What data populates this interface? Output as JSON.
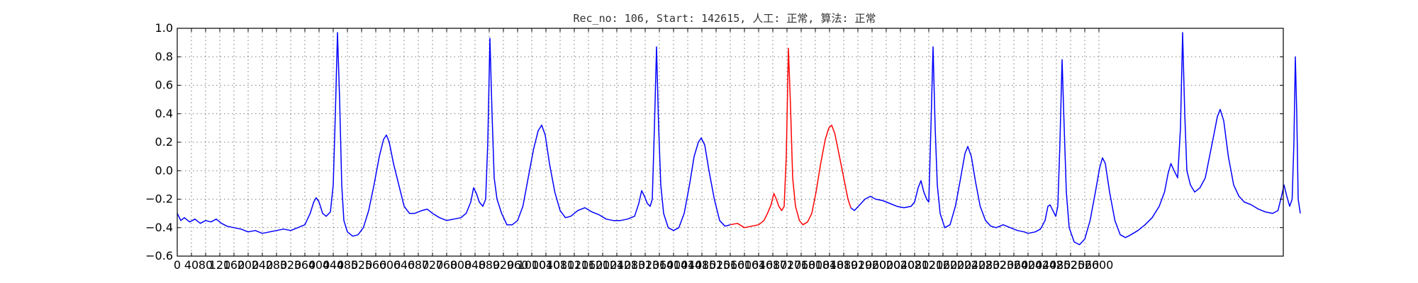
{
  "chart_data": {
    "type": "line",
    "title": "Rec_no: 106, Start: 142615, 人工: 正常, 算法: 正常",
    "xlabel": "",
    "ylabel": "",
    "xlim": [
      0,
      3120
    ],
    "ylim": [
      -0.6,
      1.0
    ],
    "grid": true,
    "y_ticks": [
      "1.0",
      "0.8",
      "0.6",
      "0.4",
      "0.2",
      "0.0",
      "−0.2",
      "−0.4",
      "−0.6"
    ],
    "x_ticks": [
      "0",
      "40",
      "80",
      "120",
      "160",
      "200",
      "240",
      "280",
      "320",
      "360",
      "400",
      "440",
      "480",
      "520",
      "560",
      "600",
      "640",
      "680",
      "720",
      "760",
      "800",
      "840",
      "880",
      "920",
      "960",
      "1000",
      "1040",
      "1080",
      "1120",
      "1160",
      "1200",
      "1240",
      "1280",
      "1320",
      "1360",
      "1400",
      "1440",
      "1480",
      "1520",
      "1560",
      "1600",
      "1640",
      "1680",
      "1720",
      "1760",
      "1800",
      "1840",
      "1880",
      "1920",
      "1960",
      "2000",
      "2040",
      "2080",
      "2120",
      "2160",
      "2200",
      "2240",
      "2280",
      "2320",
      "2360",
      "2400",
      "2440",
      "2480",
      "2520",
      "2560",
      "2600"
    ],
    "highlight": {
      "color": "#ff0000",
      "x_range": [
        1560,
        2400
      ]
    },
    "series": [
      {
        "color": "#0000ff",
        "points": [
          [
            0,
            -0.3
          ],
          [
            10,
            -0.35
          ],
          [
            20,
            -0.33
          ],
          [
            35,
            -0.36
          ],
          [
            50,
            -0.34
          ],
          [
            65,
            -0.37
          ],
          [
            80,
            -0.35
          ],
          [
            95,
            -0.36
          ],
          [
            110,
            -0.34
          ],
          [
            125,
            -0.37
          ],
          [
            140,
            -0.39
          ],
          [
            160,
            -0.4
          ],
          [
            180,
            -0.41
          ],
          [
            200,
            -0.43
          ],
          [
            220,
            -0.42
          ],
          [
            240,
            -0.44
          ],
          [
            260,
            -0.43
          ],
          [
            280,
            -0.42
          ],
          [
            300,
            -0.41
          ],
          [
            320,
            -0.42
          ],
          [
            340,
            -0.4
          ],
          [
            360,
            -0.38
          ],
          [
            375,
            -0.3
          ],
          [
            385,
            -0.22
          ],
          [
            392,
            -0.19
          ],
          [
            400,
            -0.22
          ],
          [
            410,
            -0.3
          ],
          [
            420,
            -0.32
          ],
          [
            432,
            -0.29
          ],
          [
            440,
            -0.1
          ],
          [
            446,
            0.4
          ],
          [
            452,
            0.97
          ],
          [
            458,
            0.5
          ],
          [
            464,
            -0.1
          ],
          [
            470,
            -0.35
          ],
          [
            480,
            -0.43
          ],
          [
            495,
            -0.46
          ],
          [
            510,
            -0.45
          ],
          [
            525,
            -0.4
          ],
          [
            540,
            -0.28
          ],
          [
            555,
            -0.1
          ],
          [
            570,
            0.1
          ],
          [
            582,
            0.22
          ],
          [
            590,
            0.25
          ],
          [
            598,
            0.2
          ],
          [
            610,
            0.05
          ],
          [
            625,
            -0.1
          ],
          [
            640,
            -0.25
          ],
          [
            655,
            -0.3
          ],
          [
            670,
            -0.3
          ],
          [
            690,
            -0.28
          ],
          [
            705,
            -0.27
          ],
          [
            720,
            -0.3
          ],
          [
            740,
            -0.33
          ],
          [
            760,
            -0.35
          ],
          [
            780,
            -0.34
          ],
          [
            800,
            -0.33
          ],
          [
            815,
            -0.3
          ],
          [
            828,
            -0.22
          ],
          [
            836,
            -0.12
          ],
          [
            844,
            -0.16
          ],
          [
            852,
            -0.22
          ],
          [
            862,
            -0.25
          ],
          [
            870,
            -0.2
          ],
          [
            876,
            0.2
          ],
          [
            882,
            0.93
          ],
          [
            888,
            0.4
          ],
          [
            894,
            -0.05
          ],
          [
            902,
            -0.2
          ],
          [
            915,
            -0.3
          ],
          [
            930,
            -0.38
          ],
          [
            945,
            -0.38
          ],
          [
            960,
            -0.35
          ],
          [
            975,
            -0.25
          ],
          [
            990,
            -0.05
          ],
          [
            1005,
            0.15
          ],
          [
            1018,
            0.28
          ],
          [
            1028,
            0.32
          ],
          [
            1038,
            0.25
          ],
          [
            1050,
            0.05
          ],
          [
            1065,
            -0.15
          ],
          [
            1080,
            -0.28
          ],
          [
            1095,
            -0.33
          ],
          [
            1110,
            -0.32
          ],
          [
            1130,
            -0.28
          ],
          [
            1150,
            -0.26
          ],
          [
            1170,
            -0.29
          ],
          [
            1190,
            -0.31
          ],
          [
            1210,
            -0.34
          ],
          [
            1230,
            -0.35
          ],
          [
            1250,
            -0.35
          ],
          [
            1270,
            -0.34
          ],
          [
            1290,
            -0.32
          ],
          [
            1302,
            -0.23
          ],
          [
            1310,
            -0.14
          ],
          [
            1318,
            -0.18
          ],
          [
            1326,
            -0.23
          ],
          [
            1334,
            -0.25
          ],
          [
            1340,
            -0.2
          ],
          [
            1346,
            0.3
          ],
          [
            1352,
            0.87
          ],
          [
            1358,
            0.3
          ],
          [
            1364,
            -0.1
          ],
          [
            1372,
            -0.3
          ],
          [
            1385,
            -0.4
          ],
          [
            1400,
            -0.42
          ],
          [
            1415,
            -0.4
          ],
          [
            1430,
            -0.3
          ],
          [
            1445,
            -0.1
          ],
          [
            1458,
            0.1
          ],
          [
            1470,
            0.2
          ],
          [
            1478,
            0.23
          ],
          [
            1488,
            0.18
          ],
          [
            1500,
            0.0
          ],
          [
            1515,
            -0.2
          ],
          [
            1530,
            -0.35
          ],
          [
            1545,
            -0.39
          ],
          [
            1560,
            -0.38
          ]
        ]
      },
      {
        "color": "#ff0000",
        "points": [
          [
            1560,
            -0.38
          ],
          [
            1580,
            -0.37
          ],
          [
            1600,
            -0.4
          ],
          [
            1620,
            -0.39
          ],
          [
            1640,
            -0.38
          ],
          [
            1655,
            -0.35
          ],
          [
            1665,
            -0.3
          ],
          [
            1675,
            -0.24
          ],
          [
            1683,
            -0.16
          ],
          [
            1690,
            -0.2
          ],
          [
            1697,
            -0.25
          ],
          [
            1705,
            -0.28
          ],
          [
            1712,
            -0.25
          ],
          [
            1718,
            0.1
          ],
          [
            1724,
            0.86
          ],
          [
            1730,
            0.45
          ],
          [
            1736,
            -0.05
          ],
          [
            1744,
            -0.25
          ],
          [
            1755,
            -0.35
          ],
          [
            1765,
            -0.38
          ],
          [
            1778,
            -0.36
          ],
          [
            1790,
            -0.3
          ],
          [
            1802,
            -0.15
          ],
          [
            1815,
            0.05
          ],
          [
            1828,
            0.22
          ],
          [
            1838,
            0.3
          ],
          [
            1846,
            0.32
          ],
          [
            1855,
            0.26
          ],
          [
            1868,
            0.1
          ],
          [
            1880,
            -0.05
          ],
          [
            1892,
            -0.2
          ],
          [
            1900,
            -0.26
          ]
        ]
      },
      {
        "color": "#0000ff",
        "points": [
          [
            1900,
            -0.26
          ],
          [
            1910,
            -0.28
          ],
          [
            1925,
            -0.24
          ],
          [
            1940,
            -0.2
          ],
          [
            1955,
            -0.18
          ],
          [
            1970,
            -0.2
          ],
          [
            1990,
            -0.21
          ],
          [
            2010,
            -0.23
          ],
          [
            2030,
            -0.25
          ],
          [
            2050,
            -0.26
          ],
          [
            2070,
            -0.25
          ],
          [
            2080,
            -0.22
          ],
          [
            2090,
            -0.12
          ],
          [
            2098,
            -0.07
          ],
          [
            2106,
            -0.15
          ],
          [
            2114,
            -0.2
          ],
          [
            2120,
            -0.22
          ],
          [
            2126,
            0.3
          ],
          [
            2132,
            0.87
          ],
          [
            2138,
            0.3
          ],
          [
            2144,
            -0.1
          ],
          [
            2152,
            -0.3
          ],
          [
            2165,
            -0.4
          ],
          [
            2180,
            -0.38
          ],
          [
            2195,
            -0.25
          ],
          [
            2210,
            -0.05
          ],
          [
            2222,
            0.12
          ],
          [
            2230,
            0.17
          ],
          [
            2240,
            0.1
          ],
          [
            2252,
            -0.08
          ],
          [
            2265,
            -0.25
          ],
          [
            2280,
            -0.35
          ],
          [
            2295,
            -0.39
          ],
          [
            2310,
            -0.4
          ],
          [
            2330,
            -0.38
          ],
          [
            2350,
            -0.4
          ],
          [
            2370,
            -0.42
          ],
          [
            2390,
            -0.43
          ],
          [
            2400,
            -0.44
          ],
          [
            2420,
            -0.43
          ],
          [
            2435,
            -0.41
          ],
          [
            2448,
            -0.35
          ],
          [
            2456,
            -0.25
          ],
          [
            2462,
            -0.24
          ],
          [
            2470,
            -0.28
          ],
          [
            2478,
            -0.32
          ],
          [
            2484,
            -0.25
          ],
          [
            2490,
            0.2
          ],
          [
            2496,
            0.78
          ],
          [
            2502,
            0.3
          ],
          [
            2508,
            -0.15
          ],
          [
            2516,
            -0.4
          ],
          [
            2530,
            -0.5
          ],
          [
            2545,
            -0.52
          ],
          [
            2560,
            -0.48
          ],
          [
            2575,
            -0.35
          ],
          [
            2590,
            -0.15
          ],
          [
            2602,
            0.02
          ],
          [
            2610,
            0.09
          ],
          [
            2618,
            0.05
          ],
          [
            2630,
            -0.15
          ],
          [
            2645,
            -0.35
          ],
          [
            2660,
            -0.45
          ],
          [
            2675,
            -0.47
          ],
          [
            2690,
            -0.45
          ],
          [
            2710,
            -0.42
          ],
          [
            2730,
            -0.38
          ],
          [
            2750,
            -0.33
          ],
          [
            2770,
            -0.25
          ],
          [
            2785,
            -0.15
          ],
          [
            2795,
            -0.02
          ],
          [
            2803,
            0.05
          ],
          [
            2812,
            0.0
          ],
          [
            2822,
            -0.05
          ],
          [
            2830,
            0.3
          ],
          [
            2836,
            0.97
          ],
          [
            2842,
            0.4
          ],
          [
            2848,
            0.0
          ],
          [
            2858,
            -0.1
          ],
          [
            2870,
            -0.15
          ],
          [
            2885,
            -0.12
          ],
          [
            2900,
            -0.05
          ],
          [
            2912,
            0.1
          ],
          [
            2924,
            0.25
          ],
          [
            2934,
            0.38
          ],
          [
            2942,
            0.43
          ],
          [
            2952,
            0.35
          ],
          [
            2965,
            0.1
          ],
          [
            2980,
            -0.1
          ],
          [
            2995,
            -0.18
          ],
          [
            3010,
            -0.22
          ],
          [
            3030,
            -0.24
          ],
          [
            3050,
            -0.27
          ],
          [
            3070,
            -0.29
          ],
          [
            3090,
            -0.3
          ],
          [
            3105,
            -0.28
          ],
          [
            3115,
            -0.18
          ],
          [
            3122,
            -0.1
          ],
          [
            3130,
            -0.18
          ],
          [
            3138,
            -0.25
          ],
          [
            3145,
            -0.2
          ],
          [
            3150,
            0.2
          ],
          [
            3154,
            0.8
          ],
          [
            3158,
            0.4
          ],
          [
            3162,
            -0.2
          ],
          [
            3168,
            -0.3
          ]
        ]
      }
    ]
  }
}
